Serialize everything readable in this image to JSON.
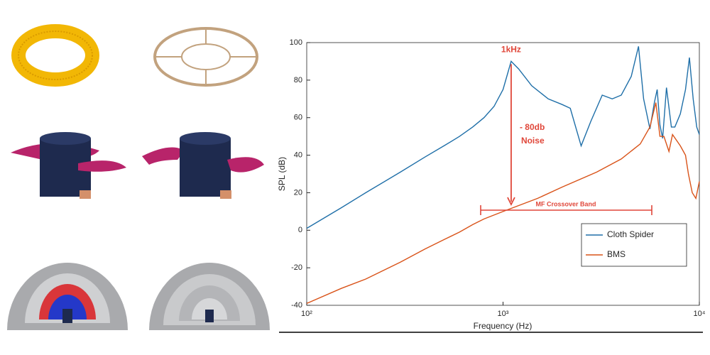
{
  "chart_data": {
    "type": "line",
    "xlabel": "Frequency (Hz)",
    "ylabel": "SPL (dB)",
    "xscale": "log",
    "xlim": [
      100,
      10000
    ],
    "ylim": [
      -40,
      100
    ],
    "xticks": [
      {
        "value": 100,
        "label": "10²"
      },
      {
        "value": 1000,
        "label": "10³"
      },
      {
        "value": 10000,
        "label": "10⁴"
      }
    ],
    "yticks": [
      -40,
      -20,
      0,
      20,
      40,
      60,
      80,
      100
    ],
    "grid": false,
    "legend": "lower right",
    "annotations": [
      "1kHz",
      "- 80db",
      "Noise",
      "MF Crossover Band"
    ],
    "series": [
      {
        "name": "Cloth Spider",
        "color": "#1f6fa8",
        "x": [
          100,
          150,
          200,
          300,
          400,
          500,
          600,
          700,
          800,
          900,
          1000,
          1100,
          1200,
          1400,
          1700,
          2000,
          2200,
          2500,
          2800,
          3200,
          3600,
          4000,
          4500,
          4900,
          5200,
          5600,
          5900,
          6100,
          6300,
          6500,
          6800,
          7200,
          7500,
          8000,
          8500,
          8900,
          9300,
          9700,
          10000
        ],
        "values": [
          1,
          12,
          20,
          31,
          39,
          45,
          50,
          55,
          60,
          66,
          75,
          90,
          86,
          77,
          70,
          67,
          65,
          45,
          58,
          72,
          70,
          72,
          82,
          98,
          70,
          54,
          68,
          75,
          56,
          49,
          76,
          55,
          55,
          62,
          75,
          92,
          70,
          55,
          51
        ]
      },
      {
        "name": "BMS",
        "color": "#d95319",
        "x": [
          100,
          150,
          200,
          300,
          400,
          500,
          600,
          700,
          800,
          1000,
          1500,
          2000,
          3000,
          4000,
          5000,
          5600,
          6000,
          6300,
          6600,
          7000,
          7300,
          8000,
          8500,
          8800,
          9200,
          9600,
          10000
        ],
        "values": [
          -39,
          -31,
          -26,
          -17,
          -10,
          -5,
          -1,
          3,
          6,
          10,
          17,
          23,
          31,
          38,
          46,
          55,
          68,
          50,
          50,
          42,
          51,
          45,
          40,
          30,
          20,
          17,
          26
        ]
      }
    ]
  }
}
